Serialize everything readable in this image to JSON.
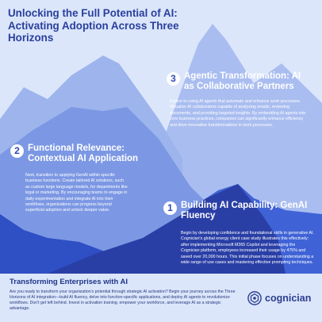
{
  "title": "Unlocking the Full Potential of AI: Activating Adoption Across Three Horizons",
  "sections": [
    {
      "number": "3",
      "heading": "Agentic Transformation: AI as Collaborative Partners",
      "body": "Evolve to using AI agents that automate and enhance work processes. Visualize AI collaborators capable of analyzing emails, reviewing documents, and providing targeted insights. By embedding AI agents into core business practices, companies can significantly enhance efficiency and drive innovative transformations in work processes."
    },
    {
      "number": "2",
      "heading": "Functional Relevance: Contextual AI Application",
      "body": "Next, transition to applying GenAI within specific business functions. Create tailored AI solutions, such as custom large language models, for departments like legal or marketing. By encouraging teams to engage in daily experimentation and integrate AI into their workflows, organizations can progress beyond superficial adoption and unlock deeper value."
    },
    {
      "number": "1",
      "heading": "Building AI Capability: GenAI Fluency",
      "body": "Begin by developing confidence and foundational skills in generative AI. Cognician's global energy client case study illustrates this effectively: after implementing Microsoft M365 Copilot and leveraging the Cognician platform, employees increased their usage by 475% and saved over 20,000 hours. This initial phase focuses on understanding a wide range of use cases and mastering effective prompting techniques."
    }
  ],
  "footer": {
    "heading": "Transforming Enterprises with AI",
    "body": "Are you ready to transform your organization's potential through strategic AI activation? Begin your journey across the Three Horizons of AI integration—build AI fluency, delve into function-specific applications, and deploy AI agents to revolutionize workflows. Don't get left behind. Invest in activation training, empower your workforce, and leverage AI as a strategic advantage."
  },
  "brand": {
    "name": "cognician",
    "icon": "cognician-logo-icon"
  },
  "colors": {
    "background": "#dbe6fb",
    "title": "#2a3f9c",
    "mountain_back": "#9db4ec",
    "mountain_mid": "#7c98e4",
    "mountain_front": "#3f63d6",
    "mountain_near": "#2a3fa6",
    "footer_text": "#2a3a7c"
  }
}
